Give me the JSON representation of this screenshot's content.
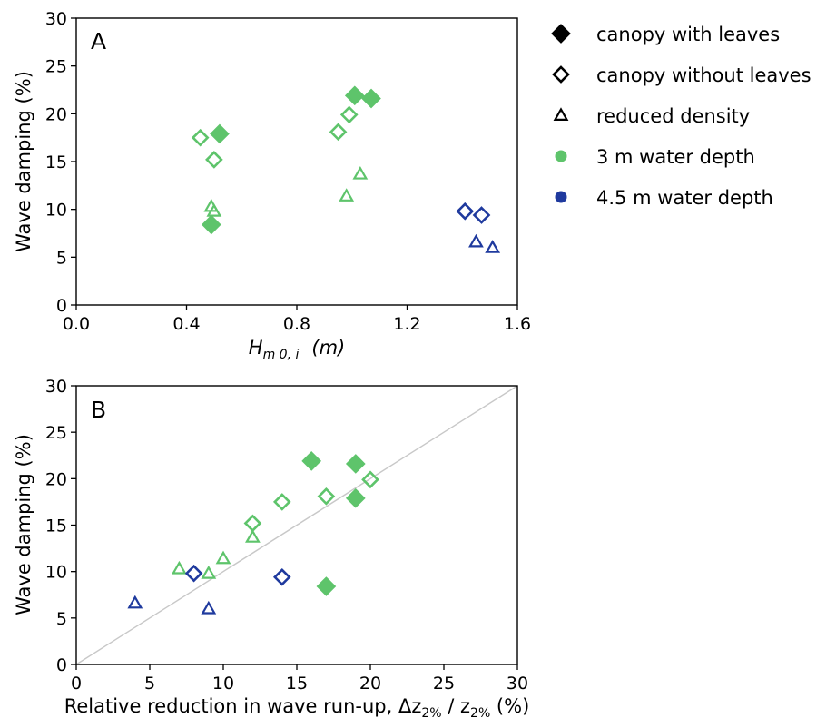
{
  "colors": {
    "green": "#5ec46b",
    "blue": "#1f3a9e",
    "black": "#000000",
    "diagonal": "#c8c8c8"
  },
  "legend": {
    "items": [
      {
        "label": "canopy with leaves",
        "marker": "diamond-filled",
        "color": "#000000"
      },
      {
        "label": "canopy without leaves",
        "marker": "diamond-open",
        "color": "#000000"
      },
      {
        "label": "reduced density",
        "marker": "triangle-open",
        "color": "#000000"
      },
      {
        "label": "3 m water depth",
        "marker": "circle-filled",
        "color": "#5ec46b"
      },
      {
        "label": "4.5 m water depth",
        "marker": "circle-filled",
        "color": "#1f3a9e"
      }
    ]
  },
  "chart_data": [
    {
      "type": "scatter",
      "panel": "A",
      "ylabel": "Wave damping (%)",
      "xlabel_main": "H",
      "xlabel_sub": "m 0, i",
      "xlabel_unit": "(m)",
      "xlim": [
        0.0,
        1.6
      ],
      "ylim": [
        0,
        30
      ],
      "xticks": [
        "0.0",
        "0.4",
        "0.8",
        "1.2",
        "1.6"
      ],
      "yticks": [
        "0",
        "5",
        "10",
        "15",
        "20",
        "25",
        "30"
      ],
      "points": [
        {
          "x": 0.52,
          "y": 17.9,
          "marker": "diamond-filled",
          "depth": "3 m"
        },
        {
          "x": 0.49,
          "y": 8.4,
          "marker": "diamond-filled",
          "depth": "3 m"
        },
        {
          "x": 1.01,
          "y": 21.9,
          "marker": "diamond-filled",
          "depth": "3 m"
        },
        {
          "x": 1.07,
          "y": 21.6,
          "marker": "diamond-filled",
          "depth": "3 m"
        },
        {
          "x": 0.45,
          "y": 17.5,
          "marker": "diamond-open",
          "depth": "3 m"
        },
        {
          "x": 0.5,
          "y": 15.2,
          "marker": "diamond-open",
          "depth": "3 m"
        },
        {
          "x": 0.95,
          "y": 18.1,
          "marker": "diamond-open",
          "depth": "3 m"
        },
        {
          "x": 0.99,
          "y": 19.9,
          "marker": "diamond-open",
          "depth": "3 m"
        },
        {
          "x": 0.49,
          "y": 10.3,
          "marker": "triangle-open",
          "depth": "3 m"
        },
        {
          "x": 0.5,
          "y": 9.8,
          "marker": "triangle-open",
          "depth": "3 m"
        },
        {
          "x": 0.98,
          "y": 11.4,
          "marker": "triangle-open",
          "depth": "3 m"
        },
        {
          "x": 1.03,
          "y": 13.7,
          "marker": "triangle-open",
          "depth": "3 m"
        },
        {
          "x": 1.41,
          "y": 9.8,
          "marker": "diamond-open",
          "depth": "4.5 m"
        },
        {
          "x": 1.47,
          "y": 9.4,
          "marker": "diamond-open",
          "depth": "4.5 m"
        },
        {
          "x": 1.45,
          "y": 6.6,
          "marker": "triangle-open",
          "depth": "4.5 m"
        },
        {
          "x": 1.51,
          "y": 6.0,
          "marker": "triangle-open",
          "depth": "4.5 m"
        }
      ]
    },
    {
      "type": "scatter",
      "panel": "B",
      "ylabel": "Wave damping (%)",
      "xlabel_pre": "Relative reduction in wave run-up, Δz",
      "xlabel_sub1": "2%",
      "xlabel_mid": " / z",
      "xlabel_sub2": "2%",
      "xlabel_post": " (%)",
      "xlim": [
        0,
        30
      ],
      "ylim": [
        0,
        30
      ],
      "xticks": [
        "0",
        "5",
        "10",
        "15",
        "20",
        "25",
        "30"
      ],
      "yticks": [
        "0",
        "5",
        "10",
        "15",
        "20",
        "25",
        "30"
      ],
      "reference_line": "y = x",
      "points": [
        {
          "x": 16,
          "y": 21.9,
          "marker": "diamond-filled",
          "depth": "3 m"
        },
        {
          "x": 19,
          "y": 21.6,
          "marker": "diamond-filled",
          "depth": "3 m"
        },
        {
          "x": 19,
          "y": 17.9,
          "marker": "diamond-filled",
          "depth": "3 m"
        },
        {
          "x": 17,
          "y": 8.4,
          "marker": "diamond-filled",
          "depth": "3 m"
        },
        {
          "x": 20,
          "y": 19.9,
          "marker": "diamond-open",
          "depth": "3 m"
        },
        {
          "x": 17,
          "y": 18.1,
          "marker": "diamond-open",
          "depth": "3 m"
        },
        {
          "x": 14,
          "y": 17.5,
          "marker": "diamond-open",
          "depth": "3 m"
        },
        {
          "x": 12,
          "y": 15.2,
          "marker": "diamond-open",
          "depth": "3 m"
        },
        {
          "x": 12,
          "y": 13.7,
          "marker": "triangle-open",
          "depth": "3 m"
        },
        {
          "x": 10,
          "y": 11.4,
          "marker": "triangle-open",
          "depth": "3 m"
        },
        {
          "x": 7,
          "y": 10.3,
          "marker": "triangle-open",
          "depth": "3 m"
        },
        {
          "x": 9,
          "y": 9.8,
          "marker": "triangle-open",
          "depth": "3 m"
        },
        {
          "x": 8,
          "y": 9.8,
          "marker": "diamond-open",
          "depth": "4.5 m"
        },
        {
          "x": 14,
          "y": 9.4,
          "marker": "diamond-open",
          "depth": "4.5 m"
        },
        {
          "x": 4,
          "y": 6.6,
          "marker": "triangle-open",
          "depth": "4.5 m"
        },
        {
          "x": 9,
          "y": 6.0,
          "marker": "triangle-open",
          "depth": "4.5 m"
        }
      ]
    }
  ]
}
